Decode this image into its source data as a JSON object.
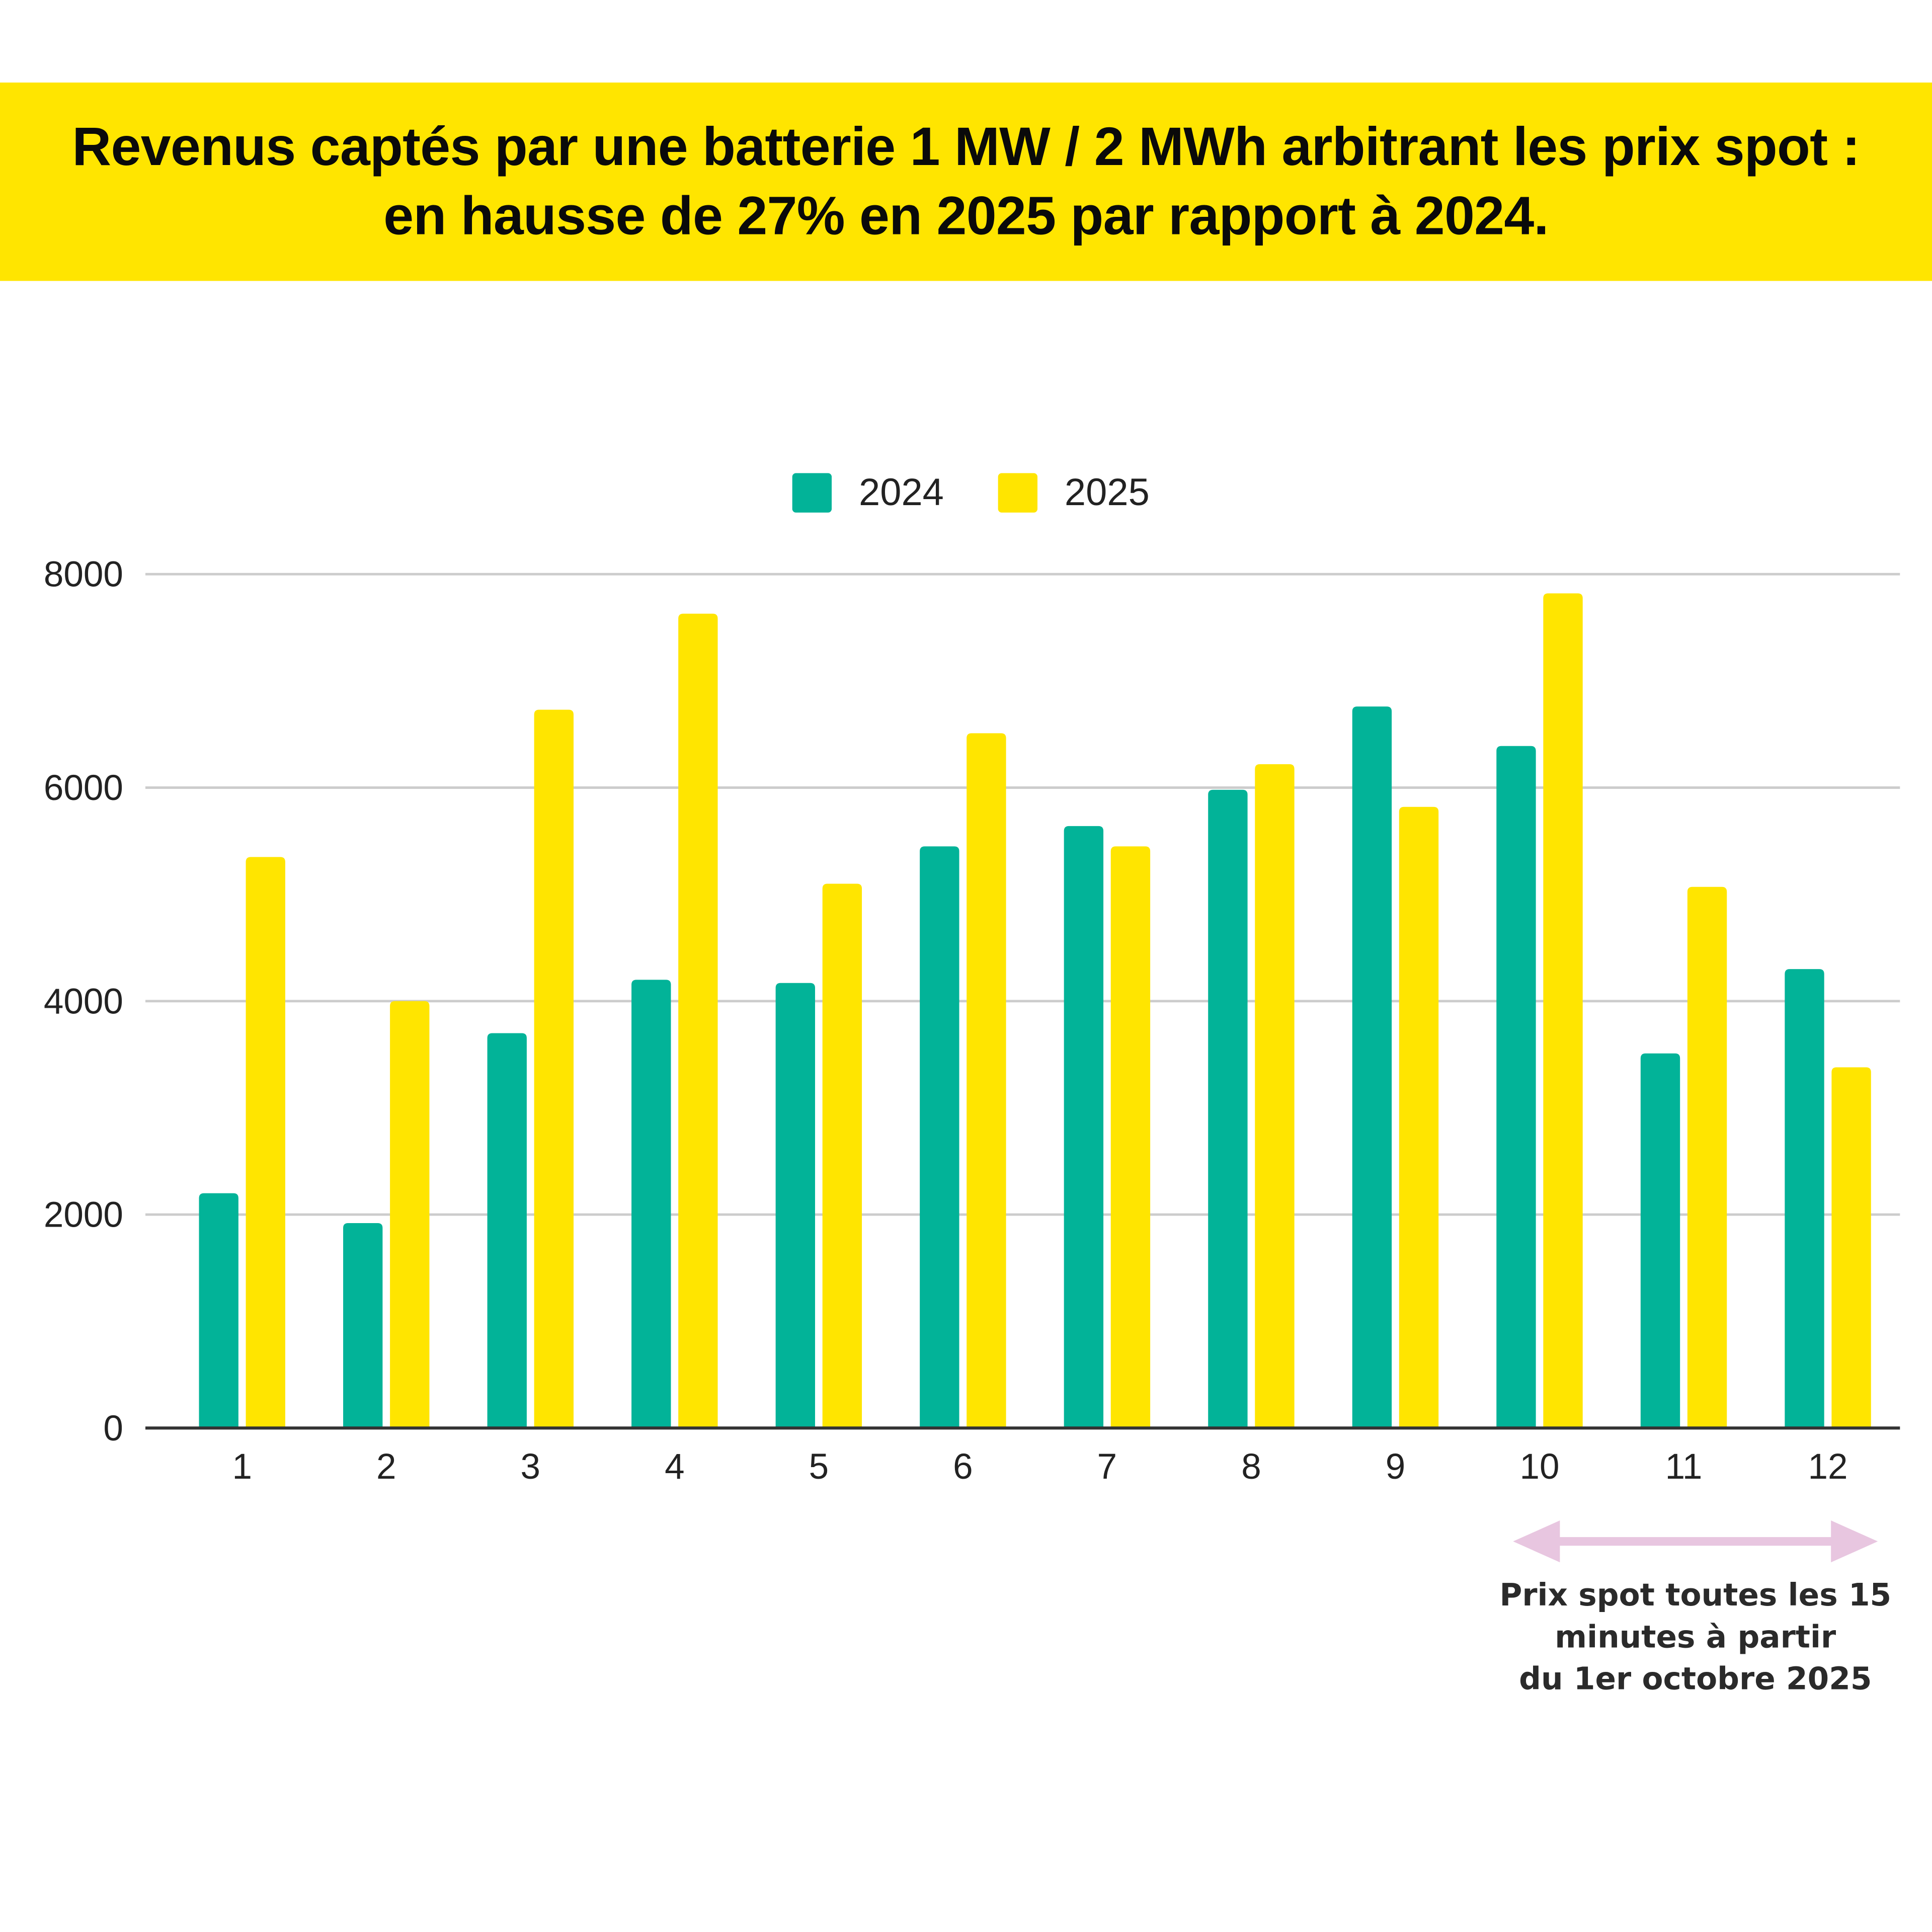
{
  "header": {
    "title": "Revenus captés par une batterie 1 MW / 2 MWh arbitrant les prix spot : en hausse de 27% en 2025 par rapport à 2024."
  },
  "colors": {
    "banner": "#FFE500",
    "series_2024": "#02B398",
    "series_2025": "#FFE500",
    "arrow": "#E8C6E0",
    "gridline": "#CCCCCC",
    "axis": "#333333"
  },
  "annotation": {
    "lines": [
      "Prix spot toutes les 15",
      "minutes à partir",
      "du 1er octobre 2025"
    ],
    "arrow_from_category": "10",
    "arrow_to_category": "12",
    "icon": "double-arrow-icon"
  },
  "chart_data": {
    "type": "bar",
    "title": "",
    "xlabel": "",
    "ylabel": "",
    "categories": [
      "1",
      "2",
      "3",
      "4",
      "5",
      "6",
      "7",
      "8",
      "9",
      "10",
      "11",
      "12"
    ],
    "series": [
      {
        "name": "2024",
        "color": "#02B398",
        "values": [
          2200,
          1920,
          3700,
          4200,
          4170,
          5450,
          5640,
          5980,
          6760,
          6390,
          3510,
          4300
        ]
      },
      {
        "name": "2025",
        "color": "#FFE500",
        "values": [
          5350,
          4000,
          6730,
          7630,
          5100,
          6510,
          5450,
          6220,
          5820,
          7820,
          5070,
          3380
        ]
      }
    ],
    "ylim": [
      0,
      8000
    ],
    "yticks": [
      0,
      2000,
      4000,
      6000,
      8000
    ],
    "grid": true,
    "legend_position": "top-center"
  }
}
